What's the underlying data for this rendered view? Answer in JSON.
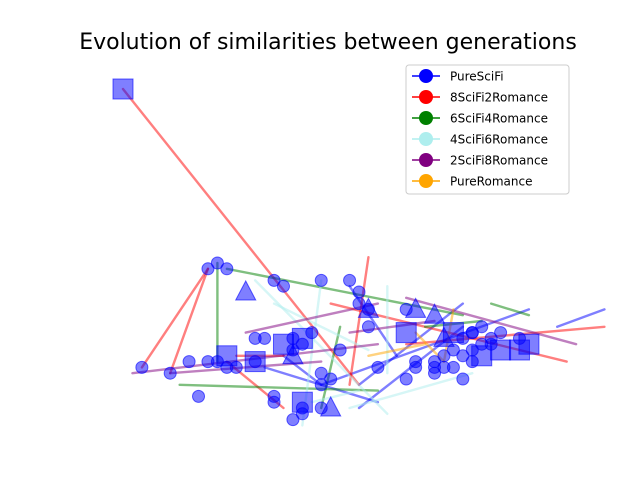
{
  "chart_data": {
    "type": "scatter",
    "title": "Evolution of similarities between generations",
    "xlabel": "",
    "ylabel": "",
    "axes_visible": false,
    "grid": false,
    "legend_position": "top-right",
    "marker_color": "#0000ff",
    "series": [
      {
        "name": "PureSciFi",
        "color": "#0000ff",
        "edges": [
          [
            [
              1.7,
              2.2
            ],
            [
              2.9,
              1.6
            ]
          ],
          [
            [
              2.7,
              1.9
            ],
            [
              3.8,
              3.3
            ]
          ],
          [
            [
              1.9,
              2.4
            ],
            [
              2.3,
              1.9
            ]
          ],
          [
            [
              2.3,
              1.9
            ],
            [
              4.5,
              3.2
            ]
          ],
          [
            [
              2.6,
              3.6
            ],
            [
              3.1,
              2.4
            ]
          ],
          [
            [
              2.7,
              1.5
            ],
            [
              3.8,
              2.9
            ]
          ],
          [
            [
              5.3,
              3.2
            ],
            [
              4.8,
              2.9
            ]
          ]
        ]
      },
      {
        "name": "8SciFi2Romance",
        "color": "#ff0000",
        "edges": [
          [
            [
              0.2,
              7.0
            ],
            [
              2.7,
              1.9
            ]
          ],
          [
            [
              1.1,
              3.9
            ],
            [
              0.7,
              2.1
            ]
          ],
          [
            [
              1.1,
              3.9
            ],
            [
              0.4,
              2.2
            ]
          ],
          [
            [
              2.8,
              4.1
            ],
            [
              2.6,
              1.9
            ]
          ],
          [
            [
              1.3,
              2.3
            ],
            [
              1.9,
              1.5
            ]
          ],
          [
            [
              3.2,
              2.6
            ],
            [
              5.3,
              2.9
            ]
          ],
          [
            [
              2.4,
              3.3
            ],
            [
              4.9,
              2.3
            ]
          ],
          [
            [
              1.4,
              2.4
            ],
            [
              1.9,
              2.4
            ]
          ]
        ]
      },
      {
        "name": "6SciFi4Romance",
        "color": "#008000",
        "edges": [
          [
            [
              1.2,
              4.0
            ],
            [
              1.2,
              2.3
            ]
          ],
          [
            [
              1.3,
              3.9
            ],
            [
              3.8,
              3.1
            ]
          ],
          [
            [
              0.8,
              1.9
            ],
            [
              2.9,
              1.8
            ]
          ],
          [
            [
              2.5,
              2.9
            ],
            [
              2.3,
              1.5
            ]
          ],
          [
            [
              3.4,
              2.9
            ],
            [
              4.0,
              3.0
            ]
          ],
          [
            [
              4.1,
              3.3
            ],
            [
              4.5,
              3.1
            ]
          ]
        ]
      },
      {
        "name": "4SciFi6Romance",
        "color": "#aeeeee",
        "edges": [
          [
            [
              1.6,
              3.7
            ],
            [
              3.0,
              1.4
            ]
          ],
          [
            [
              2.3,
              3.7
            ],
            [
              2.1,
              1.2
            ]
          ],
          [
            [
              3.0,
              3.6
            ],
            [
              3.0,
              2.1
            ]
          ],
          [
            [
              1.8,
              3.3
            ],
            [
              2.8,
              2.5
            ]
          ],
          [
            [
              2.6,
              1.5
            ],
            [
              3.9,
              2.1
            ]
          ],
          [
            [
              2.2,
              1.6
            ],
            [
              2.7,
              1.8
            ]
          ]
        ]
      },
      {
        "name": "2SciFi8Romance",
        "color": "#800080",
        "edges": [
          [
            [
              0.7,
              2.1
            ],
            [
              2.3,
              2.3
            ]
          ],
          [
            [
              1.5,
              2.8
            ],
            [
              2.9,
              3.3
            ]
          ],
          [
            [
              3.2,
              3.4
            ],
            [
              5.0,
              2.6
            ]
          ],
          [
            [
              2.6,
              2.8
            ],
            [
              3.5,
              3.0
            ]
          ],
          [
            [
              0.3,
              2.1
            ],
            [
              2.9,
              2.6
            ]
          ]
        ]
      },
      {
        "name": "PureRomance",
        "color": "#ffa500",
        "edges": [
          [
            [
              3.3,
              2.8
            ],
            [
              3.6,
              2.3
            ]
          ],
          [
            [
              3.7,
              3.2
            ],
            [
              3.6,
              2.3
            ]
          ],
          [
            [
              2.8,
              2.4
            ],
            [
              3.4,
              2.6
            ]
          ]
        ]
      }
    ],
    "points": [
      {
        "x": 0.2,
        "y": 7.0,
        "m": "square"
      },
      {
        "x": 1.1,
        "y": 3.9,
        "m": "circle"
      },
      {
        "x": 1.2,
        "y": 4.0,
        "m": "circle"
      },
      {
        "x": 1.3,
        "y": 3.9,
        "m": "circle"
      },
      {
        "x": 1.5,
        "y": 3.5,
        "m": "triangle"
      },
      {
        "x": 1.8,
        "y": 3.7,
        "m": "circle"
      },
      {
        "x": 1.9,
        "y": 3.6,
        "m": "circle"
      },
      {
        "x": 2.3,
        "y": 3.7,
        "m": "circle"
      },
      {
        "x": 2.6,
        "y": 3.7,
        "m": "circle"
      },
      {
        "x": 2.7,
        "y": 3.5,
        "m": "circle"
      },
      {
        "x": 2.7,
        "y": 3.3,
        "m": "circle"
      },
      {
        "x": 2.8,
        "y": 3.2,
        "m": "triangle"
      },
      {
        "x": 2.8,
        "y": 3.2,
        "m": "circle"
      },
      {
        "x": 3.3,
        "y": 3.2,
        "m": "triangle"
      },
      {
        "x": 3.5,
        "y": 3.1,
        "m": "triangle"
      },
      {
        "x": 3.2,
        "y": 3.2,
        "m": "circle"
      },
      {
        "x": 3.2,
        "y": 2.8,
        "m": "square"
      },
      {
        "x": 3.7,
        "y": 2.8,
        "m": "square"
      },
      {
        "x": 3.6,
        "y": 2.7,
        "m": "triangle"
      },
      {
        "x": 3.9,
        "y": 2.8,
        "m": "circle"
      },
      {
        "x": 1.6,
        "y": 2.7,
        "m": "circle"
      },
      {
        "x": 1.7,
        "y": 2.7,
        "m": "circle"
      },
      {
        "x": 1.9,
        "y": 2.6,
        "m": "square"
      },
      {
        "x": 2.0,
        "y": 2.7,
        "m": "circle"
      },
      {
        "x": 2.1,
        "y": 2.7,
        "m": "square"
      },
      {
        "x": 2.2,
        "y": 2.8,
        "m": "circle"
      },
      {
        "x": 2.1,
        "y": 2.6,
        "m": "circle"
      },
      {
        "x": 2.0,
        "y": 2.4,
        "m": "triangle"
      },
      {
        "x": 2.0,
        "y": 2.5,
        "m": "circle"
      },
      {
        "x": 2.5,
        "y": 2.5,
        "m": "circle"
      },
      {
        "x": 3.8,
        "y": 2.7,
        "m": "circle"
      },
      {
        "x": 3.9,
        "y": 2.8,
        "m": "circle"
      },
      {
        "x": 4.0,
        "y": 2.9,
        "m": "circle"
      },
      {
        "x": 4.1,
        "y": 2.7,
        "m": "circle"
      },
      {
        "x": 4.2,
        "y": 2.8,
        "m": "circle"
      },
      {
        "x": 4.0,
        "y": 2.6,
        "m": "circle"
      },
      {
        "x": 4.2,
        "y": 2.5,
        "m": "square"
      },
      {
        "x": 4.4,
        "y": 2.7,
        "m": "circle"
      },
      {
        "x": 4.5,
        "y": 2.6,
        "m": "square"
      },
      {
        "x": 4.4,
        "y": 2.5,
        "m": "square"
      },
      {
        "x": 3.6,
        "y": 2.4,
        "m": "circle"
      },
      {
        "x": 3.8,
        "y": 2.4,
        "m": "circle"
      },
      {
        "x": 3.5,
        "y": 2.3,
        "m": "circle"
      },
      {
        "x": 3.9,
        "y": 2.3,
        "m": "circle"
      },
      {
        "x": 4.0,
        "y": 2.4,
        "m": "square"
      },
      {
        "x": 3.3,
        "y": 2.3,
        "m": "circle"
      },
      {
        "x": 3.3,
        "y": 2.2,
        "m": "circle"
      },
      {
        "x": 3.5,
        "y": 2.2,
        "m": "circle"
      },
      {
        "x": 3.6,
        "y": 2.2,
        "m": "circle"
      },
      {
        "x": 3.7,
        "y": 2.2,
        "m": "circle"
      },
      {
        "x": 3.9,
        "y": 2.5,
        "m": "circle"
      },
      {
        "x": 4.1,
        "y": 2.6,
        "m": "circle"
      },
      {
        "x": 3.7,
        "y": 2.5,
        "m": "circle"
      },
      {
        "x": 3.5,
        "y": 2.1,
        "m": "circle"
      },
      {
        "x": 3.2,
        "y": 2.0,
        "m": "circle"
      },
      {
        "x": 3.8,
        "y": 2.0,
        "m": "circle"
      },
      {
        "x": 0.4,
        "y": 2.2,
        "m": "circle"
      },
      {
        "x": 0.7,
        "y": 2.1,
        "m": "circle"
      },
      {
        "x": 0.9,
        "y": 2.3,
        "m": "circle"
      },
      {
        "x": 1.1,
        "y": 2.3,
        "m": "circle"
      },
      {
        "x": 1.2,
        "y": 2.3,
        "m": "circle"
      },
      {
        "x": 1.3,
        "y": 2.2,
        "m": "circle"
      },
      {
        "x": 1.3,
        "y": 2.4,
        "m": "square"
      },
      {
        "x": 1.4,
        "y": 2.2,
        "m": "circle"
      },
      {
        "x": 1.6,
        "y": 2.3,
        "m": "square"
      },
      {
        "x": 1.6,
        "y": 2.3,
        "m": "circle"
      },
      {
        "x": 2.3,
        "y": 2.1,
        "m": "circle"
      },
      {
        "x": 2.4,
        "y": 2.0,
        "m": "circle"
      },
      {
        "x": 2.9,
        "y": 2.2,
        "m": "circle"
      },
      {
        "x": 1.0,
        "y": 1.7,
        "m": "circle"
      },
      {
        "x": 1.8,
        "y": 1.7,
        "m": "circle"
      },
      {
        "x": 1.8,
        "y": 1.6,
        "m": "circle"
      },
      {
        "x": 2.3,
        "y": 1.9,
        "m": "circle"
      },
      {
        "x": 2.1,
        "y": 1.6,
        "m": "square"
      },
      {
        "x": 2.1,
        "y": 1.5,
        "m": "circle"
      },
      {
        "x": 2.3,
        "y": 1.5,
        "m": "circle"
      },
      {
        "x": 2.4,
        "y": 1.5,
        "m": "triangle"
      },
      {
        "x": 2.1,
        "y": 1.4,
        "m": "circle"
      },
      {
        "x": 2.0,
        "y": 1.3,
        "m": "circle"
      },
      {
        "x": 2.8,
        "y": 2.9,
        "m": "circle"
      }
    ],
    "legend": [
      {
        "label": "PureSciFi",
        "color": "#0000ff"
      },
      {
        "label": "8SciFi2Romance",
        "color": "#ff0000"
      },
      {
        "label": "6SciFi4Romance",
        "color": "#008000"
      },
      {
        "label": "4SciFi6Romance",
        "color": "#aeeeee"
      },
      {
        "label": "2SciFi8Romance",
        "color": "#800080"
      },
      {
        "label": "PureRomance",
        "color": "#ffa500"
      }
    ]
  }
}
